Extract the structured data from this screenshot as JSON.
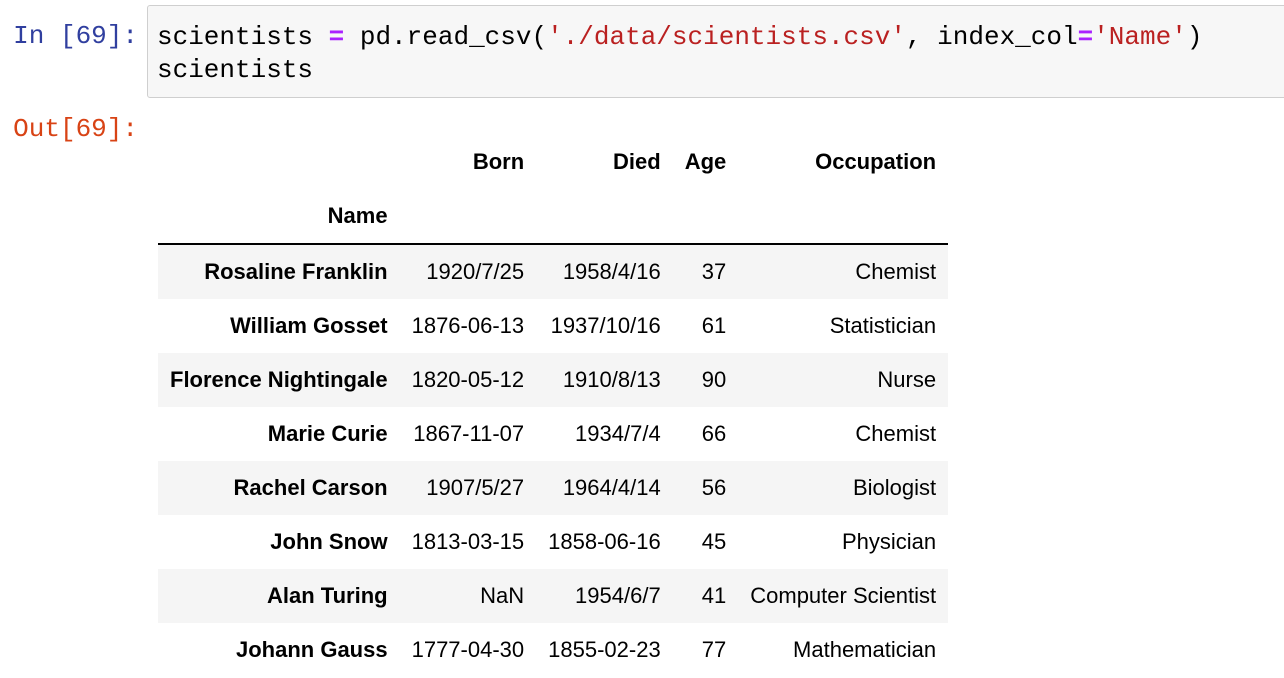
{
  "cell": {
    "in_prompt": "In [69]:",
    "out_prompt": "Out[69]:",
    "code": {
      "line1": {
        "var": "scientists ",
        "op": "=",
        "call": " pd.read_csv(",
        "path": "'./data/scientists.csv'",
        "sep": ", index_col",
        "op2": "=",
        "index": "'Name'",
        "close": ")"
      },
      "line2": "scientists"
    }
  },
  "dataframe": {
    "columns": [
      "Born",
      "Died",
      "Age",
      "Occupation"
    ],
    "index_name": "Name",
    "rows": [
      {
        "name": "Rosaline Franklin",
        "born": "1920/7/25",
        "died": "1958/4/16",
        "age": "37",
        "occupation": "Chemist"
      },
      {
        "name": "William Gosset",
        "born": "1876-06-13",
        "died": "1937/10/16",
        "age": "61",
        "occupation": "Statistician"
      },
      {
        "name": "Florence Nightingale",
        "born": "1820-05-12",
        "died": "1910/8/13",
        "age": "90",
        "occupation": "Nurse"
      },
      {
        "name": "Marie Curie",
        "born": "1867-11-07",
        "died": "1934/7/4",
        "age": "66",
        "occupation": "Chemist"
      },
      {
        "name": "Rachel Carson",
        "born": "1907/5/27",
        "died": "1964/4/14",
        "age": "56",
        "occupation": "Biologist"
      },
      {
        "name": "John Snow",
        "born": "1813-03-15",
        "died": "1858-06-16",
        "age": "45",
        "occupation": "Physician"
      },
      {
        "name": "Alan Turing",
        "born": "NaN",
        "died": "1954/6/7",
        "age": "41",
        "occupation": "Computer Scientist"
      },
      {
        "name": "Johann Gauss",
        "born": "1777-04-30",
        "died": "1855-02-23",
        "age": "77",
        "occupation": "Mathematician"
      }
    ]
  }
}
